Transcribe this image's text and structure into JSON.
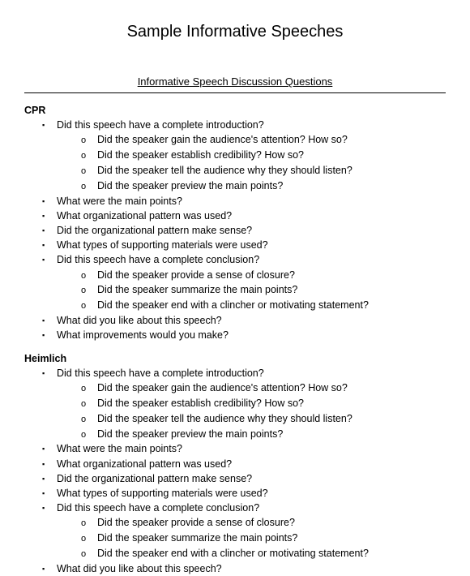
{
  "title": "Sample Informative Speeches",
  "subtitle": "Informative Speech Discussion Questions",
  "sections": [
    {
      "heading": "CPR",
      "items": [
        {
          "text": "Did this speech have a complete introduction?",
          "sub": [
            "Did the speaker gain the audience's attention?  How so?",
            "Did the speaker establish credibility?  How so?",
            "Did the speaker tell the audience why they should listen?",
            "Did the speaker preview the main points?"
          ]
        },
        {
          "text": "What were the main points?"
        },
        {
          "text": "What organizational pattern was used?"
        },
        {
          "text": "Did the organizational pattern make sense?"
        },
        {
          "text": "What types of supporting materials were used?"
        },
        {
          "text": "Did this speech have a complete conclusion?",
          "sub": [
            "Did the speaker provide a sense of closure?",
            "Did the speaker summarize the main points?",
            "Did the speaker end with a clincher or motivating statement?"
          ]
        },
        {
          "text": "What did you like about this speech?"
        },
        {
          "text": "What improvements would you make?"
        }
      ]
    },
    {
      "heading": "Heimlich",
      "items": [
        {
          "text": "Did this speech have a complete introduction?",
          "sub": [
            "Did the speaker gain the audience's attention?  How so?",
            "Did the speaker establish credibility?  How so?",
            "Did the speaker tell the audience why they should listen?",
            "Did the speaker preview the main points?"
          ]
        },
        {
          "text": "What were the main points?"
        },
        {
          "text": "What organizational pattern was used?"
        },
        {
          "text": "Did the organizational pattern make sense?"
        },
        {
          "text": "What types of supporting materials were used?"
        },
        {
          "text": "Did this speech have a complete conclusion?",
          "sub": [
            "Did the speaker provide a sense of closure?",
            "Did the speaker summarize the main points?",
            "Did the speaker end with a clincher or motivating statement?"
          ]
        },
        {
          "text": "What did you like about this speech?"
        }
      ]
    }
  ]
}
